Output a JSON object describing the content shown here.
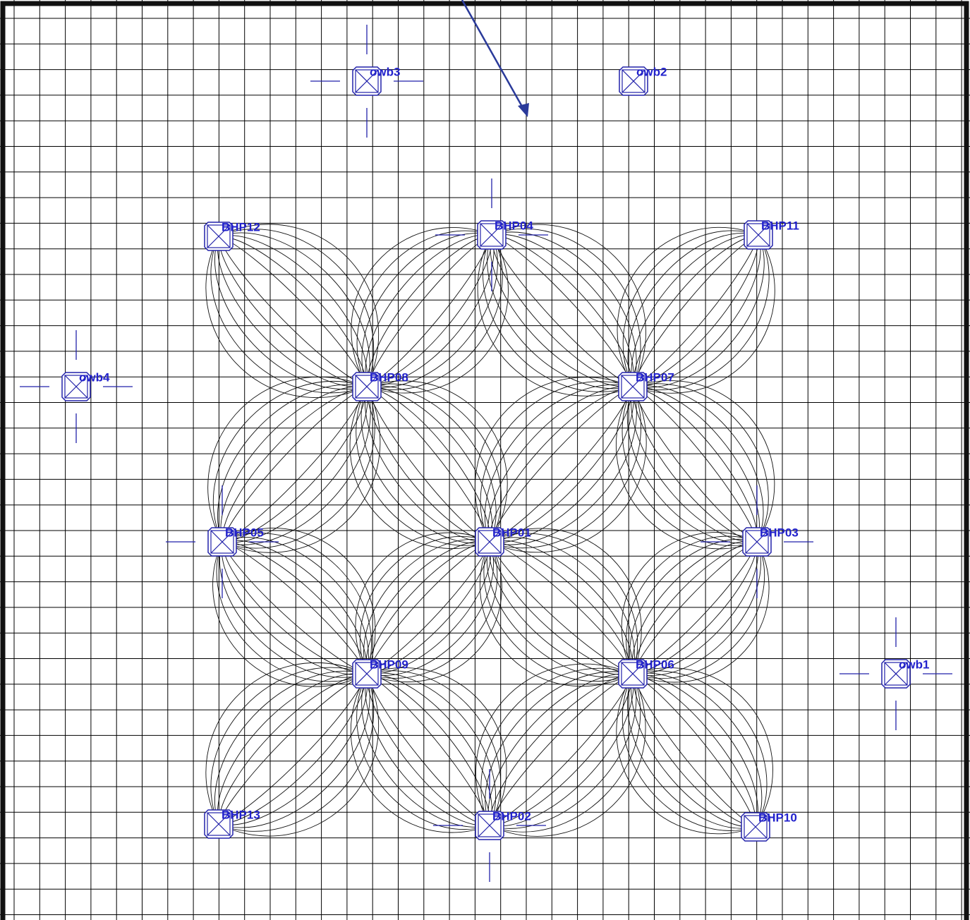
{
  "wells": [
    {
      "label": "owb3"
    },
    {
      "label": "owb2"
    },
    {
      "label": "BHP12"
    },
    {
      "label": "BHP04"
    },
    {
      "label": "BHP11"
    },
    {
      "label": "owb4"
    },
    {
      "label": "BHP08"
    },
    {
      "label": "BHP07"
    },
    {
      "label": "BHP05"
    },
    {
      "label": "BHP01"
    },
    {
      "label": "BHP03"
    },
    {
      "label": "owb1"
    },
    {
      "label": "BHP09"
    },
    {
      "label": "BHP06"
    },
    {
      "label": "BHP13"
    },
    {
      "label": "BHP02"
    },
    {
      "label": "BHP10"
    }
  ]
}
